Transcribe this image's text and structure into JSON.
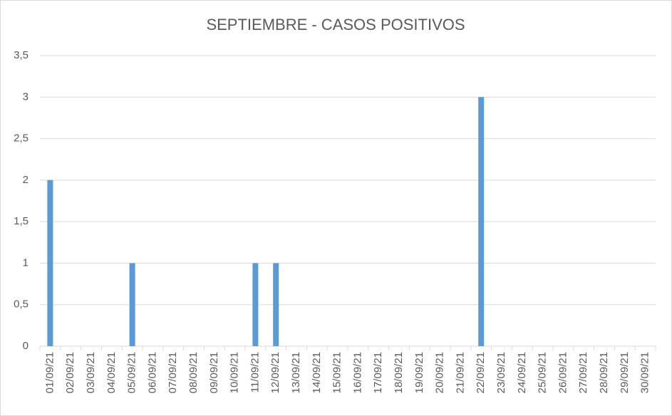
{
  "chart_data": {
    "type": "bar",
    "title": "SEPTIEMBRE - CASOS POSITIVOS",
    "categories": [
      "01/09/21",
      "02/09/21",
      "03/09/21",
      "04/09/21",
      "05/09/21",
      "06/09/21",
      "07/09/21",
      "08/09/21",
      "09/09/21",
      "10/09/21",
      "11/09/21",
      "12/09/21",
      "13/09/21",
      "14/09/21",
      "15/09/21",
      "16/09/21",
      "17/09/21",
      "18/09/21",
      "19/09/21",
      "20/09/21",
      "21/09/21",
      "22/09/21",
      "23/09/21",
      "24/09/21",
      "25/09/21",
      "26/09/21",
      "27/09/21",
      "28/09/21",
      "29/09/21",
      "30/09/21"
    ],
    "values": [
      2,
      0,
      0,
      0,
      1,
      0,
      0,
      0,
      0,
      0,
      1,
      1,
      0,
      0,
      0,
      0,
      0,
      0,
      0,
      0,
      0,
      3,
      0,
      0,
      0,
      0,
      0,
      0,
      0,
      0
    ],
    "color": "#5b9bd5",
    "ylim": [
      0,
      3.5
    ],
    "yticks": [
      0,
      {
        "value": 0.5,
        "label": "0,5"
      },
      1,
      {
        "value": 1.5,
        "label": "1,5"
      },
      2,
      {
        "value": 2.5,
        "label": "2,5"
      },
      3,
      {
        "value": 3.5,
        "label": "3,5"
      }
    ],
    "grid": true
  }
}
